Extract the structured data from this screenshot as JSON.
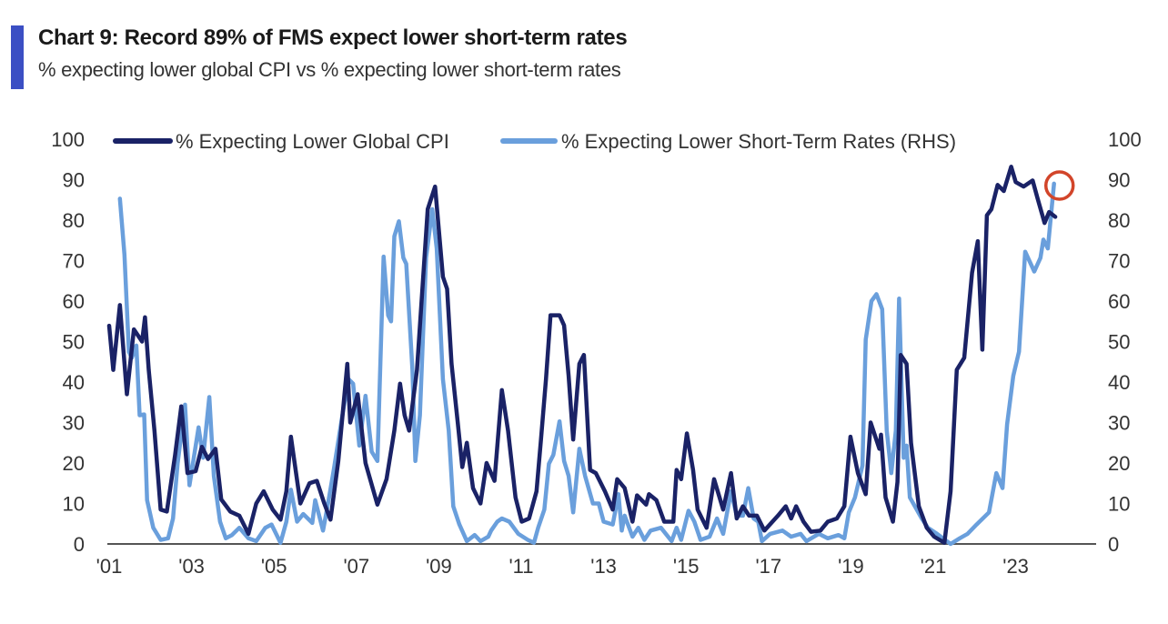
{
  "header": {
    "title": "Chart 9: Record 89% of FMS expect lower short-term rates",
    "subtitle": "% expecting lower global CPI vs % expecting lower short-term rates",
    "accent_color": "#3b4fc4"
  },
  "chart_data": {
    "type": "line",
    "title": "Chart 9: Record 89% of FMS expect lower short-term rates",
    "subtitle": "% expecting lower global CPI vs % expecting lower short-term rates",
    "xlabel": "",
    "ylabel": "",
    "xlim": [
      2001,
      2024.2
    ],
    "ylim": [
      0,
      100
    ],
    "ylim_right": [
      0,
      100
    ],
    "x_ticks": [
      2001,
      2003,
      2005,
      2007,
      2009,
      2011,
      2013,
      2015,
      2017,
      2019,
      2021,
      2023
    ],
    "x_tick_labels": [
      "'01",
      "'03",
      "'05",
      "'07",
      "'09",
      "'11",
      "'13",
      "'15",
      "'17",
      "'19",
      "'21",
      "'23"
    ],
    "y_ticks": [
      "0",
      "10",
      "20",
      "30",
      "40",
      "50",
      "60",
      "70",
      "80",
      "90",
      "100"
    ],
    "grid": false,
    "legend_position": "top",
    "annotation": {
      "type": "circle",
      "color": "#d2452a",
      "target_series": 1,
      "target_point": "last"
    },
    "series": [
      {
        "name": "% Expecting Lower Global CPI",
        "axis": "left",
        "color": "#1a2266",
        "points": [
          [
            2001.0,
            53.9
          ],
          [
            2001.1,
            43
          ],
          [
            2001.26,
            59
          ],
          [
            2001.43,
            37
          ],
          [
            2001.6,
            53
          ],
          [
            2001.8,
            50
          ],
          [
            2001.87,
            56
          ],
          [
            2001.96,
            43
          ],
          [
            2002.1,
            28
          ],
          [
            2002.25,
            8.5
          ],
          [
            2002.4,
            8
          ],
          [
            2002.6,
            22
          ],
          [
            2002.75,
            34
          ],
          [
            2002.9,
            17.5
          ],
          [
            2003.1,
            18
          ],
          [
            2003.25,
            24
          ],
          [
            2003.4,
            21
          ],
          [
            2003.58,
            23.5
          ],
          [
            2003.72,
            11
          ],
          [
            2003.94,
            8
          ],
          [
            2004.16,
            7
          ],
          [
            2004.38,
            2.5
          ],
          [
            2004.57,
            10
          ],
          [
            2004.75,
            13
          ],
          [
            2004.97,
            8.5
          ],
          [
            2005.16,
            6
          ],
          [
            2005.3,
            13
          ],
          [
            2005.41,
            26.5
          ],
          [
            2005.64,
            10
          ],
          [
            2005.86,
            15
          ],
          [
            2006.04,
            15.6
          ],
          [
            2006.22,
            10
          ],
          [
            2006.37,
            6
          ],
          [
            2006.56,
            20.5
          ],
          [
            2006.78,
            44.5
          ],
          [
            2006.85,
            30
          ],
          [
            2007.03,
            37
          ],
          [
            2007.22,
            20
          ],
          [
            2007.51,
            9.7
          ],
          [
            2007.73,
            16
          ],
          [
            2007.92,
            28
          ],
          [
            2008.06,
            39.6
          ],
          [
            2008.17,
            31.8
          ],
          [
            2008.28,
            28
          ],
          [
            2008.47,
            43
          ],
          [
            2008.73,
            82.7
          ],
          [
            2008.91,
            88.3
          ],
          [
            2009.1,
            66
          ],
          [
            2009.2,
            63
          ],
          [
            2009.31,
            44.5
          ],
          [
            2009.46,
            30
          ],
          [
            2009.57,
            19
          ],
          [
            2009.68,
            25
          ],
          [
            2009.83,
            13.8
          ],
          [
            2010.01,
            10
          ],
          [
            2010.16,
            20
          ],
          [
            2010.35,
            15.6
          ],
          [
            2010.53,
            38
          ],
          [
            2010.68,
            28
          ],
          [
            2010.86,
            11.5
          ],
          [
            2011.01,
            5.5
          ],
          [
            2011.19,
            6.3
          ],
          [
            2011.37,
            13
          ],
          [
            2011.48,
            25.8
          ],
          [
            2011.6,
            40.7
          ],
          [
            2011.71,
            56.5
          ],
          [
            2011.93,
            56.5
          ],
          [
            2012.04,
            54
          ],
          [
            2012.15,
            41.5
          ],
          [
            2012.26,
            25.8
          ],
          [
            2012.41,
            44.5
          ],
          [
            2012.52,
            46.7
          ],
          [
            2012.67,
            18.3
          ],
          [
            2012.81,
            17.5
          ],
          [
            2013.03,
            13
          ],
          [
            2013.22,
            8.5
          ],
          [
            2013.33,
            16
          ],
          [
            2013.51,
            13.8
          ],
          [
            2013.7,
            5.5
          ],
          [
            2013.81,
            12
          ],
          [
            2014.03,
            9.7
          ],
          [
            2014.1,
            12.3
          ],
          [
            2014.28,
            10.8
          ],
          [
            2014.47,
            5.5
          ],
          [
            2014.69,
            5.5
          ],
          [
            2014.77,
            18.3
          ],
          [
            2014.88,
            16
          ],
          [
            2015.02,
            27.3
          ],
          [
            2015.17,
            18.3
          ],
          [
            2015.28,
            8.5
          ],
          [
            2015.5,
            4
          ],
          [
            2015.68,
            16
          ],
          [
            2015.9,
            8.5
          ],
          [
            2016.09,
            17.5
          ],
          [
            2016.23,
            6.3
          ],
          [
            2016.38,
            9.3
          ],
          [
            2016.53,
            7
          ],
          [
            2016.72,
            7
          ],
          [
            2016.9,
            3.3
          ],
          [
            2017.23,
            7
          ],
          [
            2017.42,
            9.3
          ],
          [
            2017.55,
            6.3
          ],
          [
            2017.67,
            9.3
          ],
          [
            2017.85,
            5.5
          ],
          [
            2018.03,
            3
          ],
          [
            2018.26,
            3.3
          ],
          [
            2018.44,
            5.5
          ],
          [
            2018.66,
            6.3
          ],
          [
            2018.84,
            9.3
          ],
          [
            2018.99,
            26.5
          ],
          [
            2019.17,
            17.5
          ],
          [
            2019.36,
            12.3
          ],
          [
            2019.48,
            30
          ],
          [
            2019.69,
            23.5
          ],
          [
            2019.73,
            27
          ],
          [
            2019.84,
            11.5
          ],
          [
            2020.02,
            5.5
          ],
          [
            2020.13,
            15.3
          ],
          [
            2020.21,
            46.7
          ],
          [
            2020.35,
            44.5
          ],
          [
            2020.46,
            25
          ],
          [
            2020.65,
            9.3
          ],
          [
            2020.84,
            4
          ],
          [
            2021.02,
            1.8
          ],
          [
            2021.27,
            0.3
          ],
          [
            2021.42,
            13
          ],
          [
            2021.57,
            43
          ],
          [
            2021.75,
            46
          ],
          [
            2021.94,
            67
          ],
          [
            2022.08,
            74.8
          ],
          [
            2022.19,
            48
          ],
          [
            2022.3,
            81.2
          ],
          [
            2022.41,
            82.7
          ],
          [
            2022.56,
            88.7
          ],
          [
            2022.71,
            87.2
          ],
          [
            2022.89,
            93.2
          ],
          [
            2023.0,
            89.4
          ],
          [
            2023.19,
            88.3
          ],
          [
            2023.41,
            89.8
          ],
          [
            2023.52,
            85.7
          ],
          [
            2023.7,
            79.3
          ],
          [
            2023.81,
            82
          ],
          [
            2023.96,
            80.8
          ]
        ]
      },
      {
        "name": "% Expecting Lower Short-Term Rates (RHS)",
        "axis": "right",
        "color": "#6a9fdc",
        "points": [
          [
            2001.26,
            85.3
          ],
          [
            2001.37,
            71.5
          ],
          [
            2001.48,
            47.5
          ],
          [
            2001.55,
            46
          ],
          [
            2001.66,
            49
          ],
          [
            2001.74,
            31.8
          ],
          [
            2001.85,
            32
          ],
          [
            2001.92,
            10.8
          ],
          [
            2002.07,
            4
          ],
          [
            2002.25,
            1
          ],
          [
            2002.43,
            1.4
          ],
          [
            2002.55,
            6.3
          ],
          [
            2002.66,
            19.8
          ],
          [
            2002.84,
            34.4
          ],
          [
            2002.95,
            14.5
          ],
          [
            2003.17,
            28.8
          ],
          [
            2003.28,
            21.3
          ],
          [
            2003.43,
            36.3
          ],
          [
            2003.54,
            16.8
          ],
          [
            2003.69,
            5.5
          ],
          [
            2003.83,
            1.4
          ],
          [
            2003.98,
            2.2
          ],
          [
            2004.16,
            4
          ],
          [
            2004.38,
            1.4
          ],
          [
            2004.57,
            0.7
          ],
          [
            2004.79,
            4
          ],
          [
            2004.94,
            4.8
          ],
          [
            2005.16,
            0.3
          ],
          [
            2005.3,
            5.5
          ],
          [
            2005.41,
            13.4
          ],
          [
            2005.56,
            5.5
          ],
          [
            2005.71,
            7.4
          ],
          [
            2005.93,
            5.2
          ],
          [
            2006.0,
            10.8
          ],
          [
            2006.19,
            3.3
          ],
          [
            2006.3,
            9.3
          ],
          [
            2006.45,
            18.3
          ],
          [
            2006.67,
            32.5
          ],
          [
            2006.81,
            40.7
          ],
          [
            2006.92,
            39.6
          ],
          [
            2007.07,
            24.3
          ],
          [
            2007.22,
            36.6
          ],
          [
            2007.37,
            22.8
          ],
          [
            2007.51,
            20.5
          ],
          [
            2007.66,
            71
          ],
          [
            2007.77,
            56.5
          ],
          [
            2007.84,
            55
          ],
          [
            2007.92,
            76
          ],
          [
            2008.03,
            79.7
          ],
          [
            2008.14,
            70.7
          ],
          [
            2008.21,
            69.2
          ],
          [
            2008.36,
            43
          ],
          [
            2008.43,
            20.5
          ],
          [
            2008.54,
            31.8
          ],
          [
            2008.69,
            70.7
          ],
          [
            2008.84,
            82.7
          ],
          [
            2008.95,
            73
          ],
          [
            2009.1,
            40.7
          ],
          [
            2009.24,
            28
          ],
          [
            2009.35,
            9.3
          ],
          [
            2009.5,
            4.8
          ],
          [
            2009.68,
            0.7
          ],
          [
            2009.87,
            2.2
          ],
          [
            2010.01,
            0.7
          ],
          [
            2010.2,
            1.8
          ],
          [
            2010.27,
            3.3
          ],
          [
            2010.42,
            5.5
          ],
          [
            2010.53,
            6.3
          ],
          [
            2010.71,
            5.5
          ],
          [
            2010.93,
            2.5
          ],
          [
            2011.16,
            1
          ],
          [
            2011.31,
            0.3
          ],
          [
            2011.41,
            4
          ],
          [
            2011.56,
            8.5
          ],
          [
            2011.67,
            19.8
          ],
          [
            2011.78,
            22
          ],
          [
            2011.93,
            30.3
          ],
          [
            2012.04,
            20.5
          ],
          [
            2012.15,
            16.8
          ],
          [
            2012.26,
            7.8
          ],
          [
            2012.41,
            23.5
          ],
          [
            2012.55,
            16.8
          ],
          [
            2012.74,
            10
          ],
          [
            2012.88,
            10
          ],
          [
            2013.0,
            5.5
          ],
          [
            2013.22,
            4.8
          ],
          [
            2013.36,
            12.3
          ],
          [
            2013.44,
            3.3
          ],
          [
            2013.51,
            7
          ],
          [
            2013.7,
            1.8
          ],
          [
            2013.84,
            4
          ],
          [
            2013.99,
            1
          ],
          [
            2014.14,
            3.3
          ],
          [
            2014.39,
            4
          ],
          [
            2014.65,
            0.7
          ],
          [
            2014.77,
            4
          ],
          [
            2014.88,
            1
          ],
          [
            2015.06,
            8.2
          ],
          [
            2015.2,
            5.5
          ],
          [
            2015.35,
            1
          ],
          [
            2015.57,
            1.8
          ],
          [
            2015.75,
            6.3
          ],
          [
            2015.9,
            2.5
          ],
          [
            2016.09,
            13
          ],
          [
            2016.23,
            7
          ],
          [
            2016.38,
            7
          ],
          [
            2016.51,
            13.8
          ],
          [
            2016.64,
            6.3
          ],
          [
            2016.75,
            5.5
          ],
          [
            2016.84,
            0.7
          ],
          [
            2017.04,
            2.5
          ],
          [
            2017.34,
            3.3
          ],
          [
            2017.55,
            1.8
          ],
          [
            2017.78,
            2.5
          ],
          [
            2017.92,
            0.7
          ],
          [
            2018.22,
            2.5
          ],
          [
            2018.44,
            1.4
          ],
          [
            2018.7,
            2.2
          ],
          [
            2018.84,
            1.4
          ],
          [
            2018.95,
            7.8
          ],
          [
            2019.1,
            11.5
          ],
          [
            2019.28,
            19.4
          ],
          [
            2019.36,
            50.5
          ],
          [
            2019.5,
            60
          ],
          [
            2019.62,
            61.7
          ],
          [
            2019.76,
            58
          ],
          [
            2019.87,
            28
          ],
          [
            2019.98,
            17.5
          ],
          [
            2020.09,
            28
          ],
          [
            2020.17,
            60.6
          ],
          [
            2020.28,
            21.3
          ],
          [
            2020.35,
            24.3
          ],
          [
            2020.43,
            11.5
          ],
          [
            2020.72,
            6.3
          ],
          [
            2020.87,
            4
          ],
          [
            2021.09,
            2.5
          ],
          [
            2021.42,
            0
          ],
          [
            2021.64,
            1.4
          ],
          [
            2021.83,
            2.5
          ],
          [
            2022.05,
            4.8
          ],
          [
            2022.35,
            7.8
          ],
          [
            2022.53,
            17.5
          ],
          [
            2022.68,
            13.8
          ],
          [
            2022.79,
            29.5
          ],
          [
            2022.94,
            41.5
          ],
          [
            2023.08,
            47.5
          ],
          [
            2023.23,
            72.2
          ],
          [
            2023.45,
            67.3
          ],
          [
            2023.6,
            70.7
          ],
          [
            2023.67,
            75.2
          ],
          [
            2023.78,
            73
          ],
          [
            2023.93,
            89
          ]
        ]
      }
    ]
  }
}
